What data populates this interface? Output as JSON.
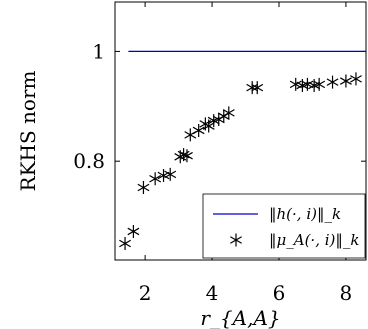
{
  "chart_data": {
    "type": "scatter",
    "xlabel": "r_{A,A}",
    "ylabel": "RKHS norm",
    "xlim": [
      1.1,
      8.6
    ],
    "ylim": [
      0.62,
      1.09
    ],
    "xticks": [
      2,
      4,
      6,
      8
    ],
    "yticks": [
      0.8,
      1
    ],
    "xtick_labels": [
      "2",
      "4",
      "6",
      "8"
    ],
    "ytick_labels": [
      "0.8",
      "1"
    ],
    "grid": false,
    "legend_position": "bottom-right",
    "series": [
      {
        "name": "‖h(·, i)‖_k",
        "style": "line",
        "color": "#0000cc",
        "x": [
          1.5,
          8.6
        ],
        "y": [
          1.0,
          1.0
        ]
      },
      {
        "name": "‖μ_A(·, i)‖_k",
        "style": "asterisk",
        "color": "#000000",
        "x": [
          1.4,
          1.65,
          1.95,
          2.3,
          2.55,
          2.75,
          3.05,
          3.15,
          3.25,
          3.35,
          3.6,
          3.8,
          3.9,
          4.05,
          4.2,
          4.35,
          4.5,
          5.2,
          5.35,
          6.5,
          6.7,
          6.85,
          7.05,
          7.2,
          7.6,
          8.0,
          8.3
        ],
        "y": [
          0.65,
          0.672,
          0.752,
          0.768,
          0.774,
          0.776,
          0.808,
          0.812,
          0.81,
          0.848,
          0.856,
          0.868,
          0.864,
          0.874,
          0.876,
          0.882,
          0.888,
          0.934,
          0.934,
          0.94,
          0.938,
          0.94,
          0.938,
          0.94,
          0.944,
          0.946,
          0.95
        ]
      }
    ]
  }
}
